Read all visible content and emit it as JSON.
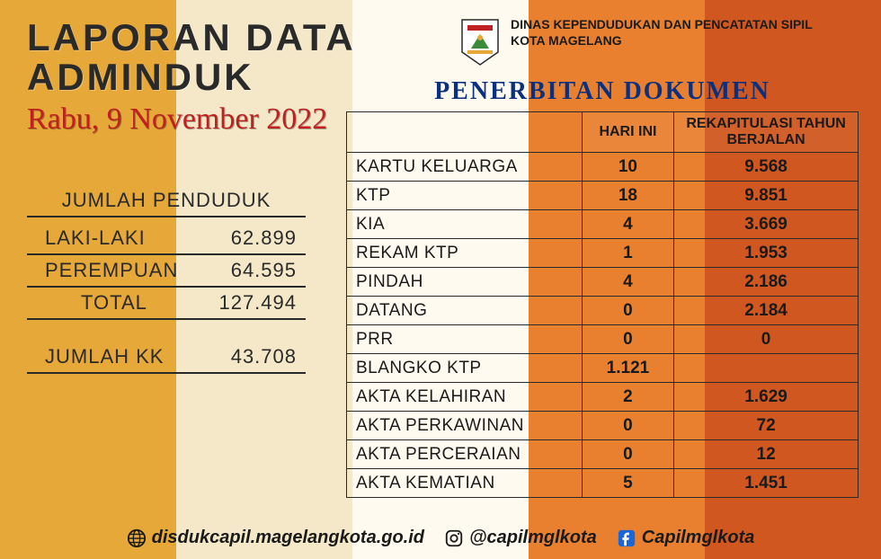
{
  "title": {
    "line1": "LAPORAN DATA",
    "line2": "ADMINDUK",
    "date": "Rabu, 9 November 2022"
  },
  "agency": {
    "line1": "DINAS KEPENDUDUKAN DAN PENCATATAN SIPIL",
    "line2": "KOTA MAGELANG"
  },
  "population": {
    "heading": "JUMLAH PENDUDUK",
    "rows": [
      {
        "label": "LAKI-LAKI",
        "value": "62.899"
      },
      {
        "label": "PEREMPUAN",
        "value": "64.595"
      },
      {
        "label": "TOTAL",
        "value": "127.494",
        "indent": true
      }
    ],
    "kk": {
      "label": "JUMLAH KK",
      "value": "43.708"
    }
  },
  "documents": {
    "heading": "PENERBITAN DOKUMEN",
    "col1": "HARI INI",
    "col2": "REKAPITULASI TAHUN BERJALAN",
    "rows": [
      {
        "name": "KARTU KELUARGA",
        "today": "10",
        "ytd": "9.568"
      },
      {
        "name": "KTP",
        "today": "18",
        "ytd": "9.851"
      },
      {
        "name": "KIA",
        "today": "4",
        "ytd": "3.669"
      },
      {
        "name": "REKAM KTP",
        "today": "1",
        "ytd": "1.953"
      },
      {
        "name": "PINDAH",
        "today": "4",
        "ytd": "2.186"
      },
      {
        "name": "DATANG",
        "today": "0",
        "ytd": "2.184"
      },
      {
        "name": "PRR",
        "today": "0",
        "ytd": "0"
      },
      {
        "name": "BLANGKO KTP",
        "today": "1.121",
        "ytd": ""
      },
      {
        "name": "AKTA KELAHIRAN",
        "today": "2",
        "ytd": "1.629"
      },
      {
        "name": "AKTA PERKAWINAN",
        "today": "0",
        "ytd": "72"
      },
      {
        "name": "AKTA PERCERAIAN",
        "today": "0",
        "ytd": "12"
      },
      {
        "name": "AKTA KEMATIAN",
        "today": "5",
        "ytd": "1.451"
      }
    ]
  },
  "footer": {
    "website": "disdukcapil.magelangkota.go.id",
    "instagram": "@capilmglkota",
    "facebook": "Capilmglkota"
  },
  "colors": {
    "stripe1": "#e6a838",
    "stripe2": "#f4e8c8",
    "stripe3": "#fffaf0",
    "stripe4": "#e88030",
    "stripe5": "#d05820",
    "titleNavy": "#0a3080",
    "dateRed": "#c02020",
    "text": "#2a2a2a"
  }
}
